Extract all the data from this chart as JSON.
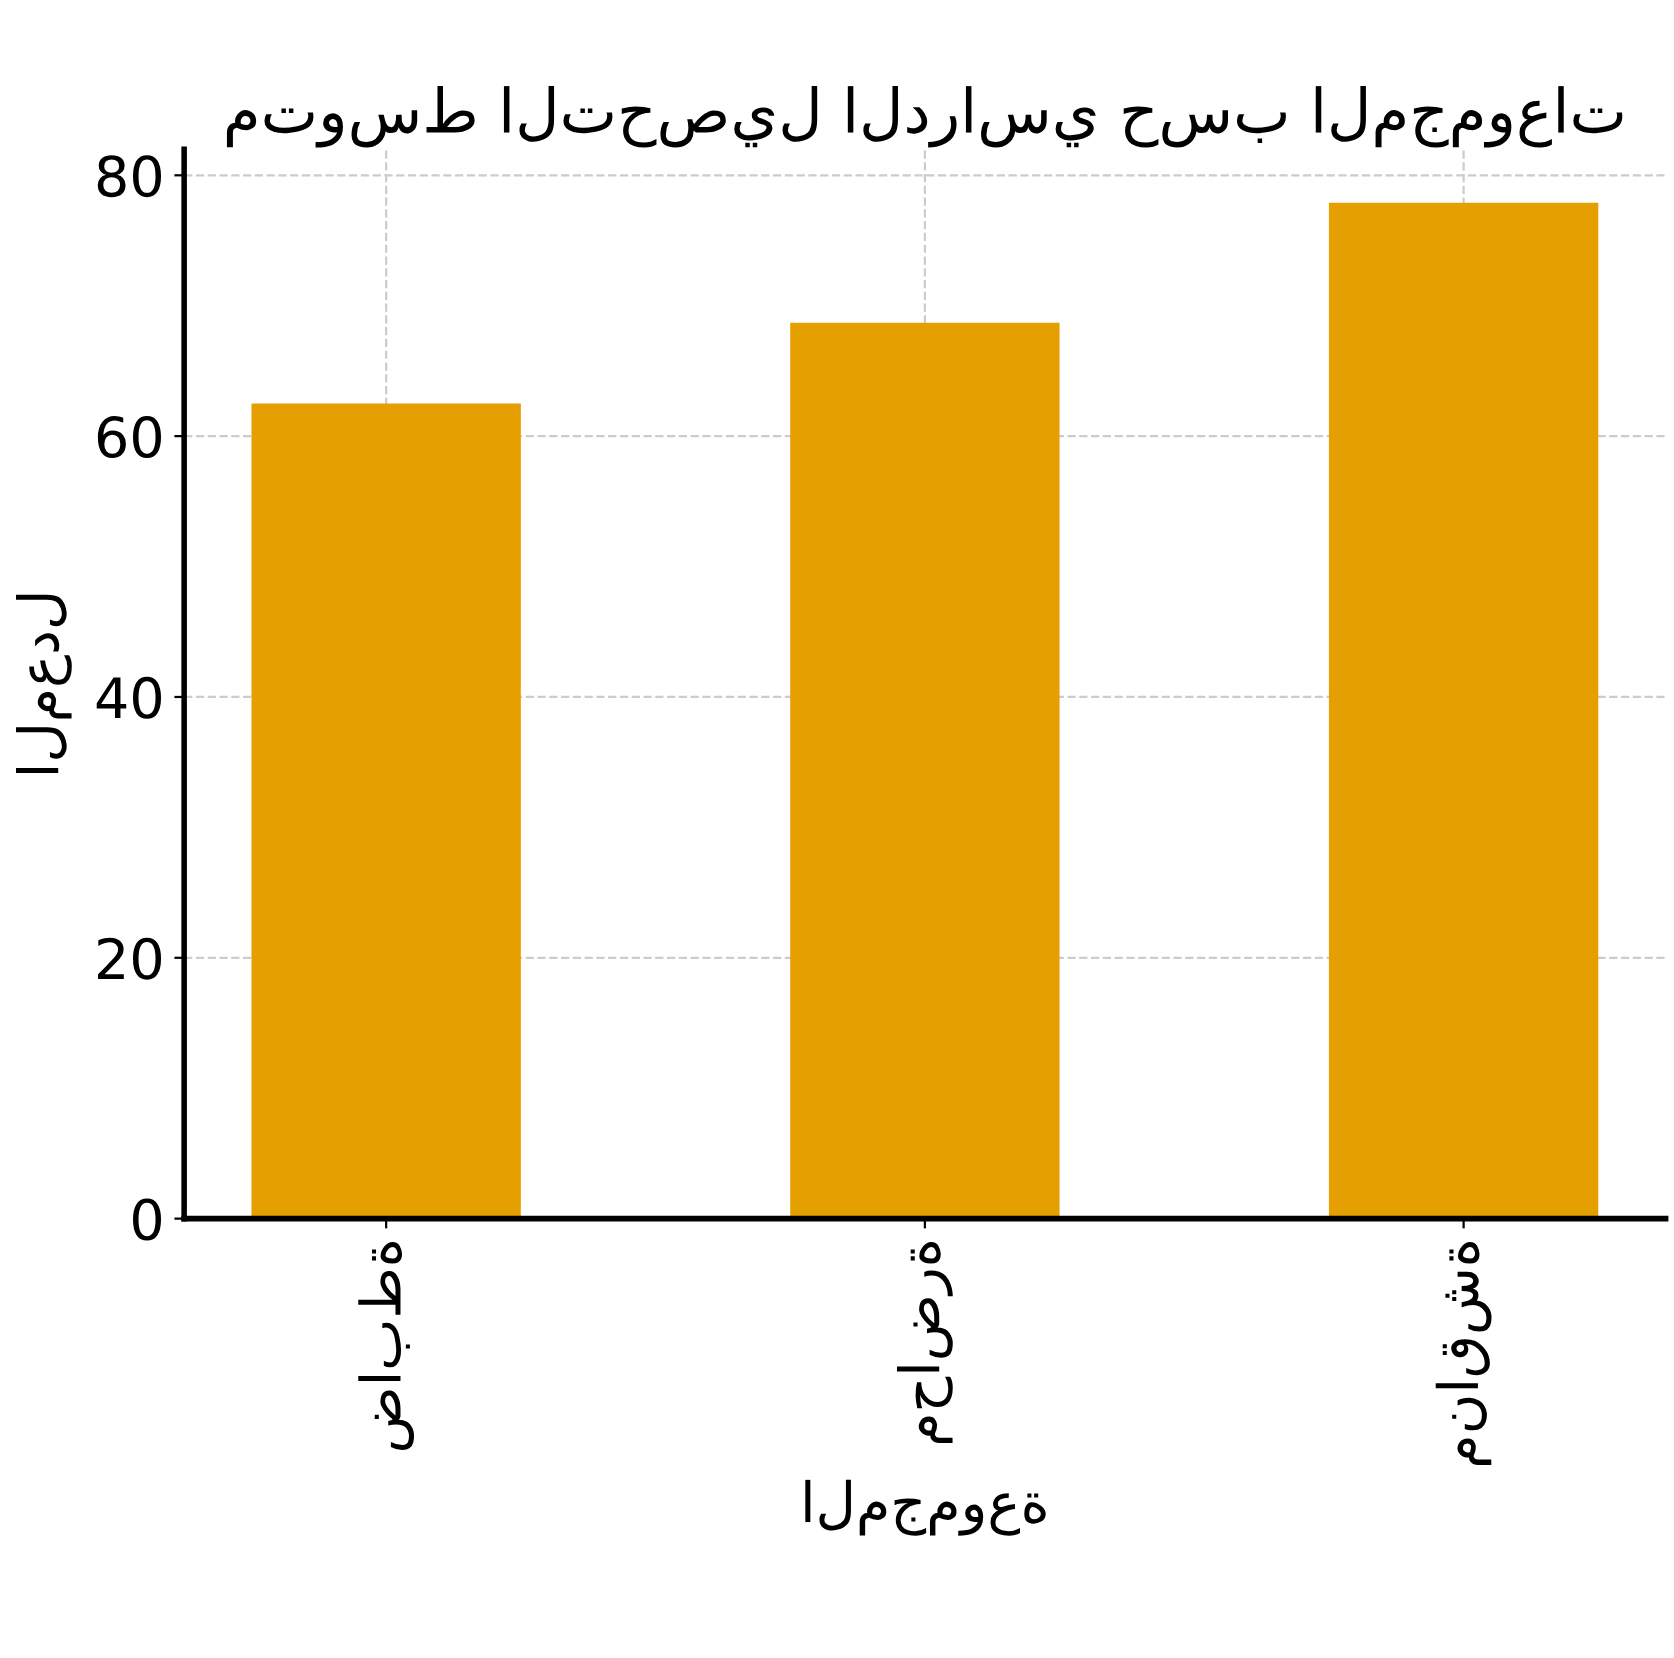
{
  "chart_data": {
    "type": "bar",
    "title": "متوسط التحصيل الدراسي حسب المجموعات",
    "xlabel": "المجموعة",
    "ylabel": "المعدل",
    "categories": [
      "ضابطة",
      "محاضرة",
      "مناقشة"
    ],
    "values": [
      62.5,
      68.7,
      77.9
    ],
    "color": "#e69f00",
    "ylim": [
      0,
      82
    ],
    "yticks": [
      0,
      20,
      40,
      60,
      80
    ],
    "grid": true
  }
}
